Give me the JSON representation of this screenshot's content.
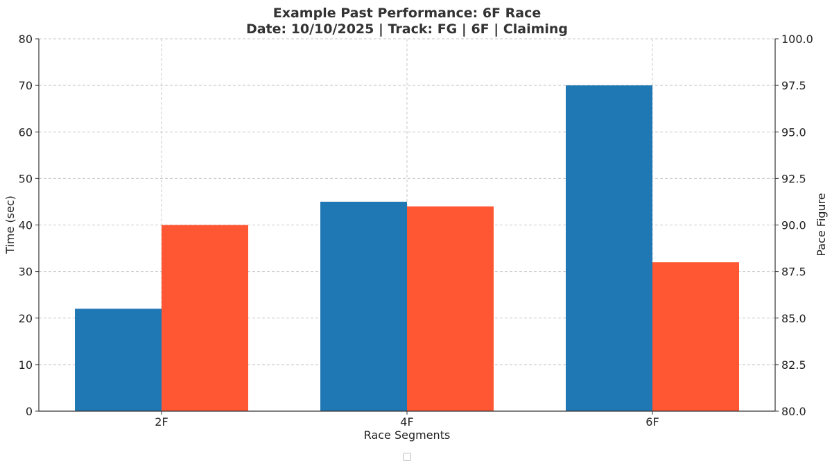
{
  "chart_data": {
    "type": "bar",
    "title": "Example Past Performance: 6F Race",
    "subtitle": "Date: 10/10/2025 | Track: FG | 6F | Claiming",
    "xlabel": "Race Segments",
    "ylabel_left": "Time (sec)",
    "ylabel_right": "Pace Figure",
    "categories": [
      "2F",
      "4F",
      "6F"
    ],
    "ylim_left": [
      0,
      80
    ],
    "ylim_right": [
      80,
      100
    ],
    "yticks_left": [
      "0",
      "10",
      "20",
      "30",
      "40",
      "50",
      "60",
      "70",
      "80"
    ],
    "yticks_right": [
      "80.0",
      "82.5",
      "85.0",
      "87.5",
      "90.0",
      "92.5",
      "95.0",
      "97.5",
      "100.0"
    ],
    "grid": true,
    "legend": "bottom-center, empty",
    "series": [
      {
        "axis": "left",
        "color": "#1f77b4",
        "values": [
          22,
          45,
          70
        ]
      },
      {
        "axis": "right",
        "color": "#ff5733",
        "values": [
          90,
          91,
          88
        ]
      }
    ]
  }
}
